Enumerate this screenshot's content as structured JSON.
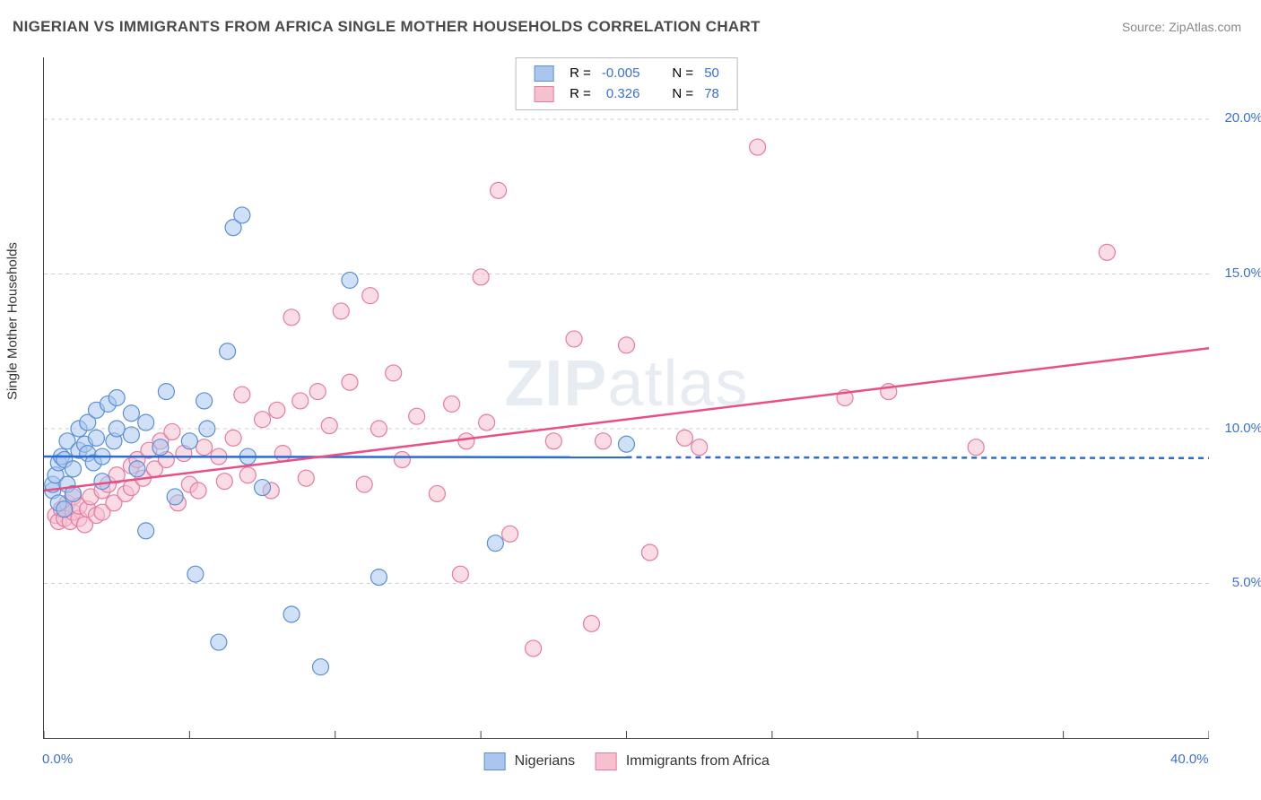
{
  "title": "NIGERIAN VS IMMIGRANTS FROM AFRICA SINGLE MOTHER HOUSEHOLDS CORRELATION CHART",
  "source_prefix": "Source: ",
  "source_name": "ZipAtlas.com",
  "ylabel": "Single Mother Households",
  "watermark": {
    "bold": "ZIP",
    "thin": "atlas"
  },
  "chart": {
    "type": "scatter",
    "background_color": "#ffffff",
    "grid_color": "#cccccc",
    "grid_dash": "4,4",
    "axis_color": "#444444",
    "xlim": [
      0,
      40
    ],
    "ylim": [
      0,
      22
    ],
    "yticks": [
      5,
      10,
      15,
      20
    ],
    "ytick_labels": [
      "5.0%",
      "10.0%",
      "15.0%",
      "20.0%"
    ],
    "xticks": [
      0,
      5,
      10,
      15,
      20,
      25,
      30,
      35,
      40
    ],
    "xticks_labeled": [
      0,
      40
    ],
    "xtick_labels": [
      "0.0%",
      "40.0%"
    ],
    "marker_radius": 9,
    "marker_opacity": 0.55,
    "marker_stroke_width": 1.2,
    "label_fontsize": 15,
    "label_color": "#3b6fd6",
    "series": [
      {
        "key": "nigerians",
        "label": "Nigerians",
        "fill": "#aac6ee",
        "stroke": "#5a8fd6",
        "r_value": "-0.005",
        "n_value": "50",
        "trend": {
          "y_at_xmin": 9.1,
          "y_at_xmax": 9.05,
          "solid_end_x": 20,
          "color": "#2b6cd1",
          "width": 2.5
        },
        "points": [
          [
            0.3,
            8.0
          ],
          [
            0.3,
            8.2
          ],
          [
            0.4,
            8.5
          ],
          [
            0.5,
            7.6
          ],
          [
            0.5,
            8.9
          ],
          [
            0.6,
            9.1
          ],
          [
            0.7,
            7.4
          ],
          [
            0.7,
            9.0
          ],
          [
            0.8,
            8.2
          ],
          [
            0.8,
            9.6
          ],
          [
            1.0,
            8.7
          ],
          [
            1.0,
            7.9
          ],
          [
            1.2,
            9.3
          ],
          [
            1.2,
            10.0
          ],
          [
            1.4,
            9.5
          ],
          [
            1.5,
            9.2
          ],
          [
            1.5,
            10.2
          ],
          [
            1.7,
            8.9
          ],
          [
            1.8,
            10.6
          ],
          [
            1.8,
            9.7
          ],
          [
            2.0,
            9.1
          ],
          [
            2.0,
            8.3
          ],
          [
            2.2,
            10.8
          ],
          [
            2.4,
            9.6
          ],
          [
            2.5,
            10.0
          ],
          [
            2.5,
            11.0
          ],
          [
            3.0,
            9.8
          ],
          [
            3.0,
            10.5
          ],
          [
            3.2,
            8.7
          ],
          [
            3.5,
            6.7
          ],
          [
            3.5,
            10.2
          ],
          [
            4.0,
            9.4
          ],
          [
            4.2,
            11.2
          ],
          [
            4.5,
            7.8
          ],
          [
            5.0,
            9.6
          ],
          [
            5.2,
            5.3
          ],
          [
            5.5,
            10.9
          ],
          [
            5.6,
            10.0
          ],
          [
            6.0,
            3.1
          ],
          [
            6.3,
            12.5
          ],
          [
            6.5,
            16.5
          ],
          [
            6.8,
            16.9
          ],
          [
            7.0,
            9.1
          ],
          [
            7.5,
            8.1
          ],
          [
            8.5,
            4.0
          ],
          [
            9.5,
            2.3
          ],
          [
            10.5,
            14.8
          ],
          [
            11.5,
            5.2
          ],
          [
            15.5,
            6.3
          ],
          [
            20.0,
            9.5
          ]
        ]
      },
      {
        "key": "immigrants",
        "label": "Immigrants from Africa",
        "fill": "#f6c0cf",
        "stroke": "#e77aa0",
        "r_value": "0.326",
        "n_value": "78",
        "trend": {
          "y_at_xmin": 8.0,
          "y_at_xmax": 12.6,
          "solid_end_x": 40,
          "color": "#e84f87",
          "width": 2.5
        },
        "points": [
          [
            0.4,
            7.2
          ],
          [
            0.5,
            7.0
          ],
          [
            0.6,
            7.4
          ],
          [
            0.7,
            7.1
          ],
          [
            0.8,
            7.6
          ],
          [
            0.9,
            7.0
          ],
          [
            1.0,
            7.3
          ],
          [
            1.0,
            7.8
          ],
          [
            1.2,
            7.1
          ],
          [
            1.2,
            7.5
          ],
          [
            1.4,
            6.9
          ],
          [
            1.5,
            7.4
          ],
          [
            1.6,
            7.8
          ],
          [
            1.8,
            7.2
          ],
          [
            2.0,
            8.0
          ],
          [
            2.0,
            7.3
          ],
          [
            2.2,
            8.2
          ],
          [
            2.4,
            7.6
          ],
          [
            2.5,
            8.5
          ],
          [
            2.8,
            7.9
          ],
          [
            3.0,
            8.8
          ],
          [
            3.0,
            8.1
          ],
          [
            3.2,
            9.0
          ],
          [
            3.4,
            8.4
          ],
          [
            3.6,
            9.3
          ],
          [
            3.8,
            8.7
          ],
          [
            4.0,
            9.6
          ],
          [
            4.2,
            9.0
          ],
          [
            4.4,
            9.9
          ],
          [
            4.6,
            7.6
          ],
          [
            4.8,
            9.2
          ],
          [
            5.0,
            8.2
          ],
          [
            5.3,
            8.0
          ],
          [
            5.5,
            9.4
          ],
          [
            6.0,
            9.1
          ],
          [
            6.2,
            8.3
          ],
          [
            6.5,
            9.7
          ],
          [
            6.8,
            11.1
          ],
          [
            7.0,
            8.5
          ],
          [
            7.5,
            10.3
          ],
          [
            7.8,
            8.0
          ],
          [
            8.0,
            10.6
          ],
          [
            8.2,
            9.2
          ],
          [
            8.5,
            13.6
          ],
          [
            8.8,
            10.9
          ],
          [
            9.0,
            8.4
          ],
          [
            9.4,
            11.2
          ],
          [
            9.8,
            10.1
          ],
          [
            10.2,
            13.8
          ],
          [
            10.5,
            11.5
          ],
          [
            11.0,
            8.2
          ],
          [
            11.2,
            14.3
          ],
          [
            11.5,
            10.0
          ],
          [
            12.0,
            11.8
          ],
          [
            12.3,
            9.0
          ],
          [
            12.8,
            10.4
          ],
          [
            13.5,
            7.9
          ],
          [
            14.0,
            10.8
          ],
          [
            14.3,
            5.3
          ],
          [
            14.5,
            9.6
          ],
          [
            15.0,
            14.9
          ],
          [
            15.2,
            10.2
          ],
          [
            15.6,
            17.7
          ],
          [
            16.0,
            6.6
          ],
          [
            16.8,
            2.9
          ],
          [
            17.5,
            9.6
          ],
          [
            18.2,
            12.9
          ],
          [
            18.8,
            3.7
          ],
          [
            19.2,
            9.6
          ],
          [
            20.0,
            12.7
          ],
          [
            20.8,
            6.0
          ],
          [
            22.0,
            9.7
          ],
          [
            22.5,
            9.4
          ],
          [
            24.5,
            19.1
          ],
          [
            27.5,
            11.0
          ],
          [
            29.0,
            11.2
          ],
          [
            32.0,
            9.4
          ],
          [
            36.5,
            15.7
          ]
        ]
      }
    ],
    "legend": {
      "r_label": "R =",
      "n_label": "N ="
    }
  }
}
